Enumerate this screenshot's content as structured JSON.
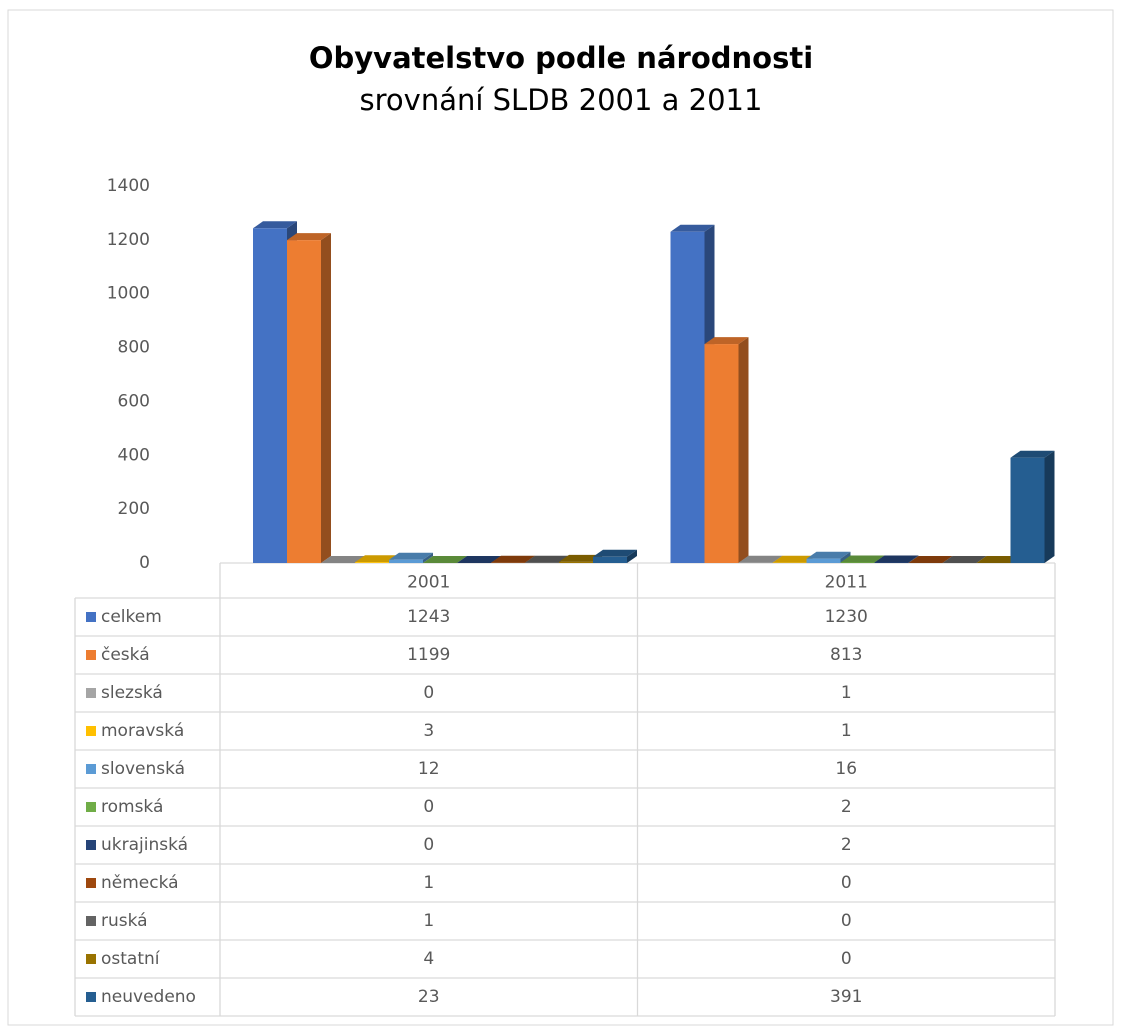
{
  "chart_data": {
    "type": "bar3d",
    "title": "Obyvatelstvo podle národnosti",
    "subtitle": "srovnání SLDB 2001 a 2011",
    "categories": [
      "2001",
      "2011"
    ],
    "ylim": [
      0,
      1400
    ],
    "yticks": [
      0,
      200,
      400,
      600,
      800,
      1000,
      1200,
      1400
    ],
    "grid": false,
    "series": [
      {
        "name": "celkem",
        "color": "#4472c4",
        "values": [
          1243,
          1230
        ]
      },
      {
        "name": "česká",
        "color": "#ed7d31",
        "values": [
          1199,
          813
        ]
      },
      {
        "name": "slezská",
        "color": "#a5a5a5",
        "values": [
          0,
          1
        ]
      },
      {
        "name": "moravská",
        "color": "#ffc000",
        "values": [
          3,
          1
        ]
      },
      {
        "name": "slovenská",
        "color": "#5b9bd5",
        "values": [
          12,
          16
        ]
      },
      {
        "name": "romská",
        "color": "#70ad47",
        "values": [
          0,
          2
        ]
      },
      {
        "name": "ukrajinská",
        "color": "#264478",
        "values": [
          0,
          2
        ]
      },
      {
        "name": "německá",
        "color": "#9e480e",
        "values": [
          1,
          0
        ]
      },
      {
        "name": "ruská",
        "color": "#636363",
        "values": [
          1,
          0
        ]
      },
      {
        "name": "ostatní",
        "color": "#997300",
        "values": [
          4,
          0
        ]
      },
      {
        "name": "neuvedeno",
        "color": "#255e91",
        "values": [
          23,
          391
        ]
      }
    ]
  }
}
